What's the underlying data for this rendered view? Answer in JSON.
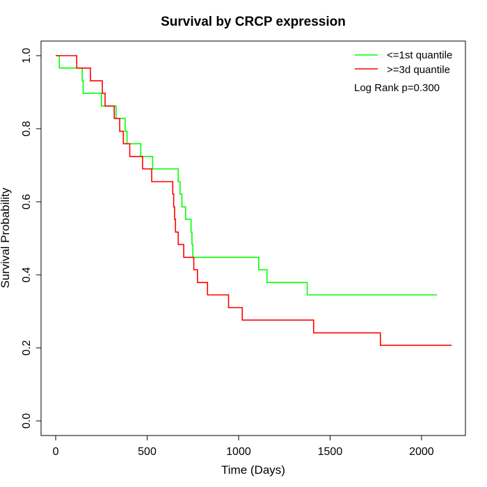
{
  "chart_data": {
    "type": "line",
    "title": "Survival by CRCP expression",
    "xlabel": "Time (Days)",
    "ylabel": "Survival Probability",
    "xlim": [
      -80,
      2240
    ],
    "ylim": [
      -0.04,
      1.04
    ],
    "x_ticks": [
      0,
      500,
      1000,
      1500,
      2000
    ],
    "y_ticks": [
      0.0,
      0.2,
      0.4,
      0.6,
      0.8,
      1.0
    ],
    "x_tick_labels": [
      "0",
      "500",
      "1000",
      "1500",
      "2000"
    ],
    "y_tick_labels": [
      "0.0",
      "0.2",
      "0.4",
      "0.6",
      "0.8",
      "1.0"
    ],
    "grid": false,
    "legend_position": "top-right",
    "annotation": "Log Rank p=0.300",
    "series": [
      {
        "name": "<=1st quantile",
        "color": "#00FF00",
        "steps": [
          [
            0,
            1.0
          ],
          [
            20,
            0.966
          ],
          [
            145,
            0.931
          ],
          [
            150,
            0.897
          ],
          [
            250,
            0.862
          ],
          [
            330,
            0.828
          ],
          [
            380,
            0.793
          ],
          [
            390,
            0.759
          ],
          [
            465,
            0.724
          ],
          [
            530,
            0.69
          ],
          [
            670,
            0.655
          ],
          [
            680,
            0.621
          ],
          [
            690,
            0.586
          ],
          [
            710,
            0.552
          ],
          [
            740,
            0.517
          ],
          [
            745,
            0.483
          ],
          [
            750,
            0.448
          ],
          [
            1110,
            0.414
          ],
          [
            1155,
            0.379
          ],
          [
            1375,
            0.345
          ],
          [
            2085,
            0.345
          ]
        ]
      },
      {
        "name": ">=3d quantile",
        "color": "#FF0000",
        "steps": [
          [
            0,
            1.0
          ],
          [
            115,
            0.966
          ],
          [
            190,
            0.931
          ],
          [
            255,
            0.897
          ],
          [
            270,
            0.862
          ],
          [
            320,
            0.828
          ],
          [
            350,
            0.793
          ],
          [
            370,
            0.759
          ],
          [
            405,
            0.724
          ],
          [
            475,
            0.69
          ],
          [
            525,
            0.655
          ],
          [
            640,
            0.621
          ],
          [
            645,
            0.586
          ],
          [
            650,
            0.552
          ],
          [
            655,
            0.517
          ],
          [
            670,
            0.483
          ],
          [
            700,
            0.448
          ],
          [
            755,
            0.414
          ],
          [
            775,
            0.379
          ],
          [
            830,
            0.345
          ],
          [
            945,
            0.31
          ],
          [
            1020,
            0.276
          ],
          [
            1410,
            0.241
          ],
          [
            1775,
            0.207
          ],
          [
            2165,
            0.207
          ]
        ]
      }
    ]
  }
}
